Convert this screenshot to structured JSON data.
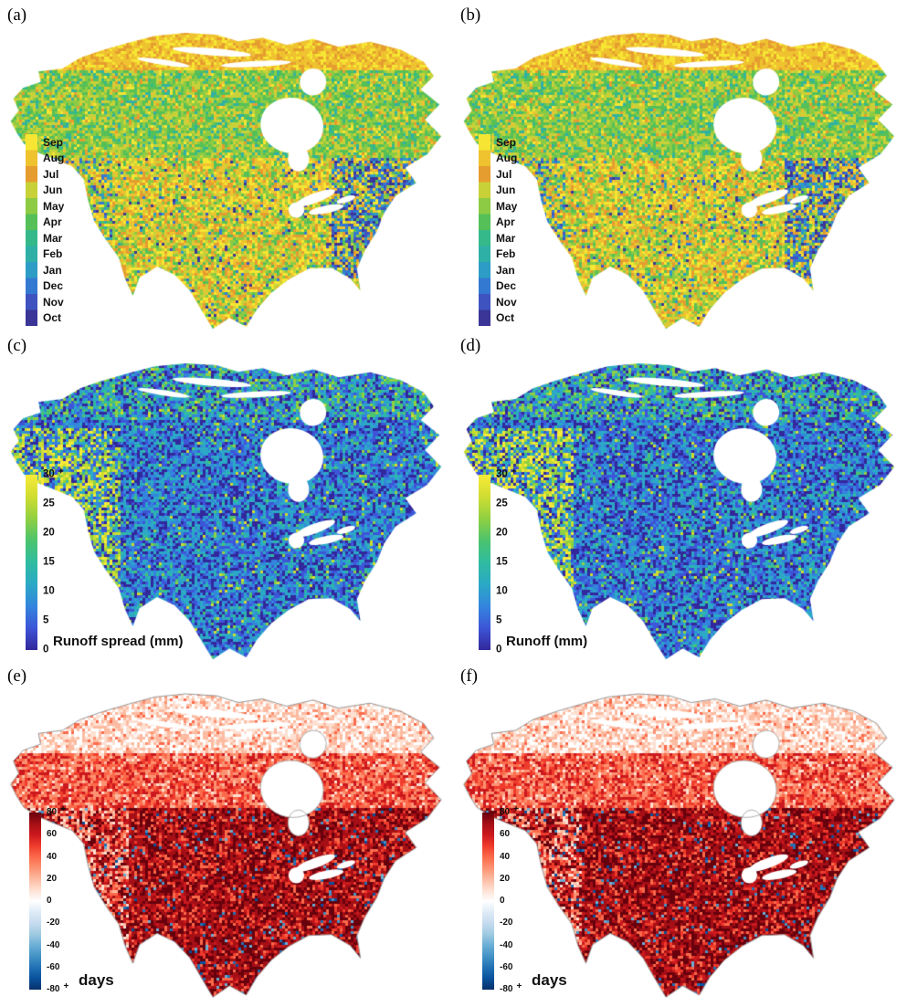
{
  "figure": {
    "background": "#ffffff",
    "panels": [
      {
        "id": "a",
        "label": "(a)",
        "colorbar": "months"
      },
      {
        "id": "b",
        "label": "(b)",
        "colorbar": "months"
      },
      {
        "id": "c",
        "label": "(c)",
        "colorbar": "runoff",
        "caption": "Runoff spread (mm)"
      },
      {
        "id": "d",
        "label": "(d)",
        "colorbar": "runoff",
        "caption": "Runoff (mm)"
      },
      {
        "id": "e",
        "label": "(e)",
        "colorbar": "days",
        "caption": "days"
      },
      {
        "id": "f",
        "label": "(f)",
        "colorbar": "days",
        "caption": "days"
      }
    ]
  },
  "map": {
    "ocean_color": "#ffffff",
    "coastline_color": "#9a9a9a"
  },
  "colorbars": {
    "months": {
      "ticks": [
        "Sep",
        "Aug",
        "Jul",
        "Jun",
        "May",
        "Apr",
        "Mar",
        "Feb",
        "Jan",
        "Dec",
        "Nov",
        "Oct"
      ],
      "colors": [
        "#f6e633",
        "#efc230",
        "#e59d2f",
        "#c9d138",
        "#8ccb43",
        "#55c058",
        "#35b98b",
        "#2fb0a7",
        "#2d9cc6",
        "#3379d2",
        "#3f53c0",
        "#3a3596"
      ]
    },
    "runoff": {
      "ticks": [
        "30",
        "25",
        "20",
        "15",
        "10",
        "5",
        "0"
      ],
      "top_suffix": "+",
      "colors": [
        "#f8ea38",
        "#cfdd31",
        "#90d041",
        "#4cc46e",
        "#2fbca0",
        "#2ba9c6",
        "#3385dd",
        "#3d55d8",
        "#32279b"
      ]
    },
    "days": {
      "ticks": [
        "80",
        "60",
        "40",
        "20",
        "0",
        "-20",
        "-40",
        "-60",
        "-80"
      ],
      "top_suffix": "+",
      "bottom_suffix": "+",
      "colors": [
        "#67000d",
        "#a50f15",
        "#cb181d",
        "#ef3b2c",
        "#fb6a4a",
        "#fc9272",
        "#fcbba1",
        "#fee0d2",
        "#ffffff",
        "#deebf7",
        "#c6dbef",
        "#9ecae1",
        "#6baed6",
        "#4292c6",
        "#2171b5",
        "#08519c",
        "#08306b"
      ]
    }
  }
}
